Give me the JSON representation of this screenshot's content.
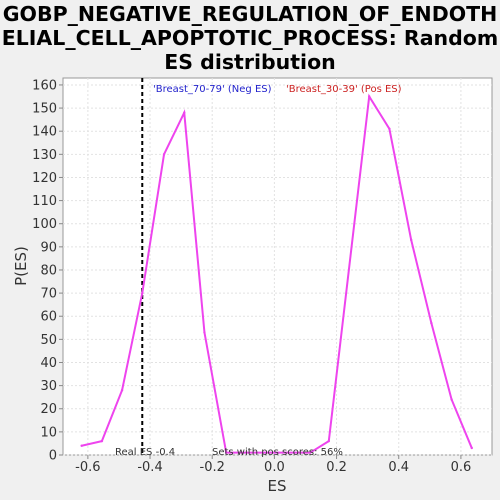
{
  "title_lines": [
    "GOBP_NEGATIVE_REGULATION_OF_ENDOTH",
    "ELIAL_CELL_APOPTOTIC_PROCESS: Random",
    "ES distribution"
  ],
  "chart_data": {
    "type": "line",
    "title": "GOBP_NEGATIVE_REGULATION_OF_ENDOTHELIAL_CELL_APOPTOTIC_PROCESS: Random ES distribution",
    "xlabel": "ES",
    "ylabel": "P(ES)",
    "xlim": [
      -0.68,
      0.7
    ],
    "ylim": [
      0,
      163
    ],
    "xticks": [
      -0.6,
      -0.4,
      -0.2,
      0.0,
      0.2,
      0.4,
      0.6
    ],
    "xtick_labels": [
      "-0.6",
      "-0.4",
      "-0.2",
      "0.0",
      "0.2",
      "0.4",
      "0.6"
    ],
    "yticks": [
      0,
      10,
      20,
      30,
      40,
      50,
      60,
      70,
      80,
      90,
      100,
      110,
      120,
      130,
      140,
      150,
      160
    ],
    "grid": true,
    "series": [
      {
        "color": "#ee44ee",
        "x": [
          -0.62,
          -0.555,
          -0.49,
          -0.425,
          -0.355,
          -0.29,
          -0.225,
          -0.155,
          0.115,
          0.175,
          0.305,
          0.37,
          0.44,
          0.505,
          0.57,
          0.635
        ],
        "y": [
          4,
          6,
          28,
          70,
          130,
          148,
          53,
          1,
          1,
          6,
          155,
          141,
          93,
          57,
          24,
          3
        ]
      }
    ],
    "real_es": {
      "x": -0.425,
      "label": "Real ES -0.4"
    },
    "legend": {
      "neg": {
        "text": "'Breast_70-79' (Neg ES)",
        "color": "#2222cc"
      },
      "pos": {
        "text": "'Breast_30-39' (Pos ES)",
        "color": "#cc2222"
      }
    },
    "pos_annotation": "Sets with pos scores: 56%"
  }
}
